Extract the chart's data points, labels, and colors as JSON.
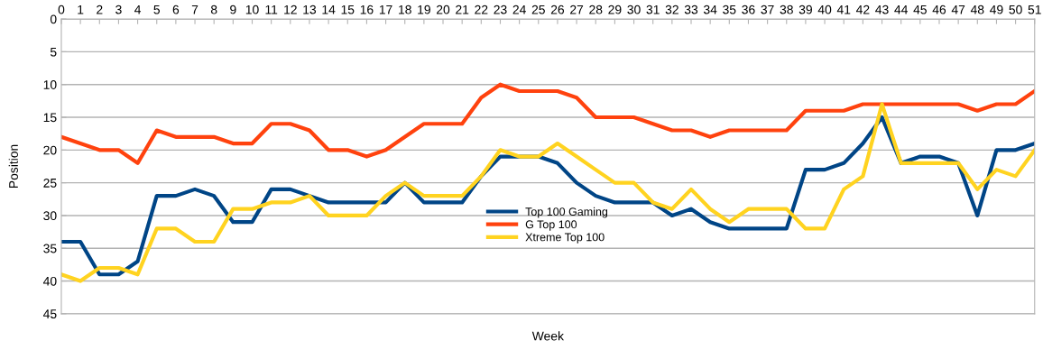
{
  "chart_data": {
    "type": "line",
    "xlabel": "Week",
    "ylabel": "Position",
    "x": [
      0,
      1,
      2,
      3,
      4,
      5,
      6,
      7,
      8,
      9,
      10,
      11,
      12,
      13,
      14,
      15,
      16,
      17,
      18,
      19,
      20,
      21,
      22,
      23,
      24,
      25,
      26,
      27,
      28,
      29,
      30,
      31,
      32,
      33,
      34,
      35,
      36,
      37,
      38,
      39,
      40,
      41,
      42,
      43,
      44,
      45,
      46,
      47,
      48,
      49,
      50,
      51
    ],
    "xlim": [
      0,
      51
    ],
    "xticks": [
      0,
      1,
      2,
      3,
      4,
      5,
      6,
      7,
      8,
      9,
      10,
      11,
      12,
      13,
      14,
      15,
      16,
      17,
      18,
      19,
      20,
      21,
      22,
      23,
      24,
      25,
      26,
      27,
      28,
      29,
      30,
      31,
      32,
      33,
      34,
      35,
      36,
      37,
      38,
      39,
      40,
      41,
      42,
      43,
      44,
      45,
      46,
      47,
      48,
      49,
      50,
      51
    ],
    "ylim": [
      45,
      0
    ],
    "yticks": [
      0,
      5,
      10,
      15,
      20,
      25,
      30,
      35,
      40,
      45
    ],
    "grid": "y",
    "legend": "center",
    "marker": "none",
    "line_style": "solid",
    "series": [
      {
        "name": "Top 100 Gaming",
        "color": "#004586",
        "values": [
          34,
          34,
          39,
          39,
          37,
          27,
          27,
          26,
          27,
          31,
          31,
          26,
          26,
          27,
          28,
          28,
          28,
          28,
          25,
          28,
          28,
          28,
          24,
          21,
          21,
          21,
          22,
          25,
          27,
          28,
          28,
          28,
          30,
          29,
          31,
          32,
          32,
          32,
          32,
          23,
          23,
          22,
          19,
          15,
          22,
          21,
          21,
          22,
          30,
          20,
          20,
          19
        ]
      },
      {
        "name": "G Top 100",
        "color": "#ff420e",
        "values": [
          18,
          19,
          20,
          20,
          22,
          17,
          18,
          18,
          18,
          19,
          19,
          16,
          16,
          17,
          20,
          20,
          21,
          20,
          18,
          16,
          16,
          16,
          12,
          10,
          11,
          11,
          11,
          12,
          15,
          15,
          15,
          16,
          17,
          17,
          18,
          17,
          17,
          17,
          17,
          14,
          14,
          14,
          13,
          13,
          13,
          13,
          13,
          13,
          14,
          13,
          13,
          11
        ]
      },
      {
        "name": "Xtreme Top 100",
        "color": "#ffd320",
        "values": [
          39,
          40,
          38,
          38,
          39,
          32,
          32,
          34,
          34,
          29,
          29,
          28,
          28,
          27,
          30,
          30,
          30,
          27,
          25,
          27,
          27,
          27,
          24,
          20,
          21,
          21,
          19,
          21,
          23,
          25,
          25,
          28,
          29,
          26,
          29,
          31,
          29,
          29,
          29,
          32,
          32,
          26,
          24,
          13,
          22,
          22,
          22,
          22,
          26,
          23,
          24,
          20
        ]
      }
    ]
  }
}
